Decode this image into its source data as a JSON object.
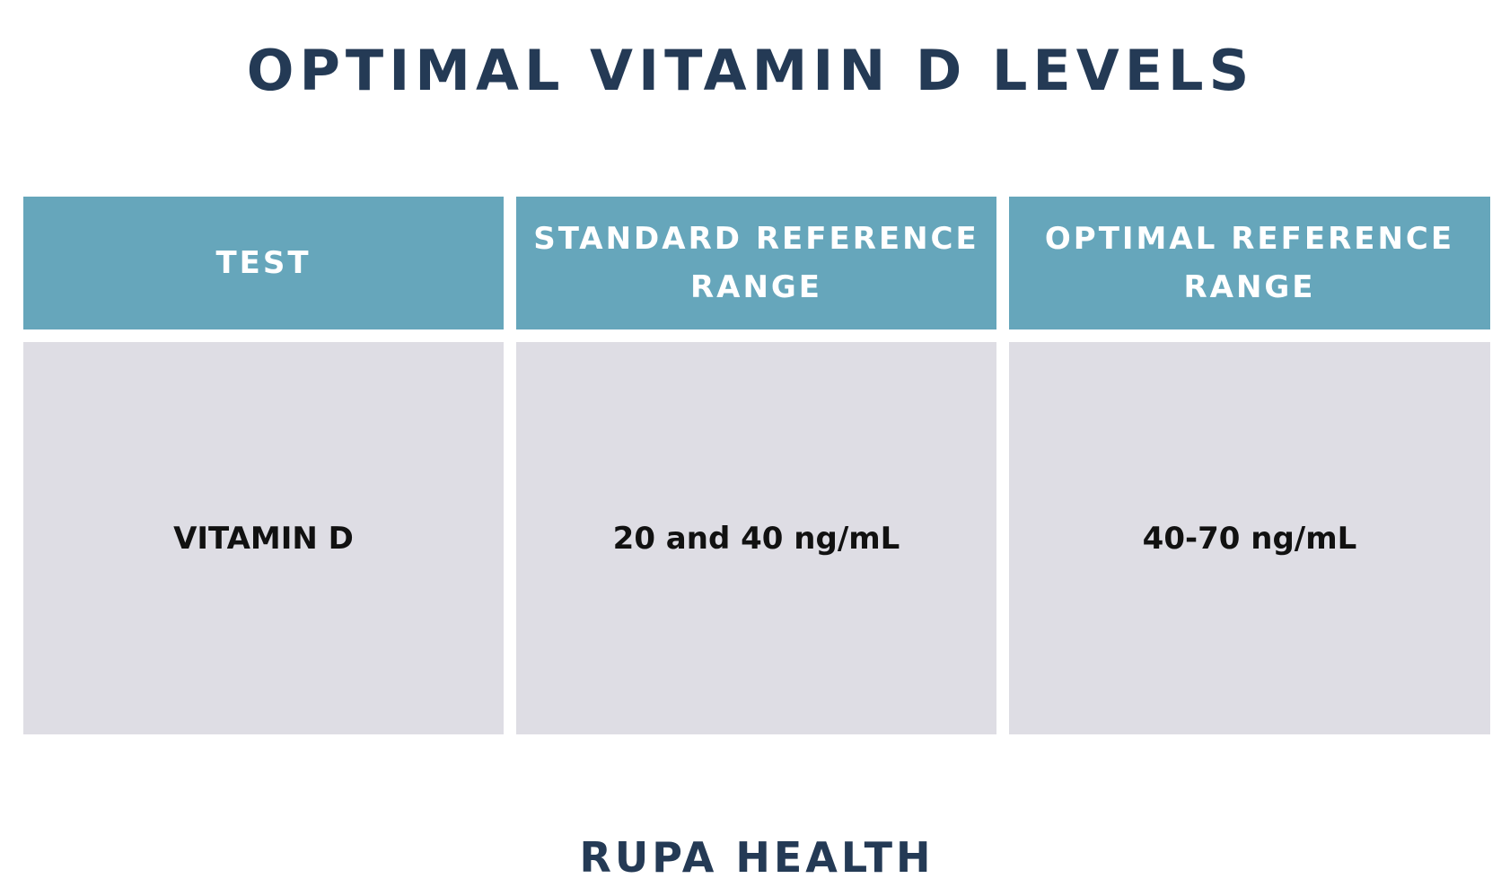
{
  "title": "OPTIMAL VITAMIN D LEVELS",
  "table": {
    "headers": [
      "TEST",
      "STANDARD REFERENCE RANGE",
      "OPTIMAL REFERENCE RANGE"
    ],
    "rows": [
      [
        "VITAMIN D",
        "20 and 40 ng/mL",
        "40-70 ng/mL"
      ]
    ]
  },
  "footer": "RUPA HEALTH",
  "colors": {
    "title": "#243a55",
    "header_bg": "#66a6bb",
    "header_text": "#ffffff",
    "cell_bg": "#dedde4",
    "cell_text": "#111111",
    "footer": "#243a55"
  }
}
